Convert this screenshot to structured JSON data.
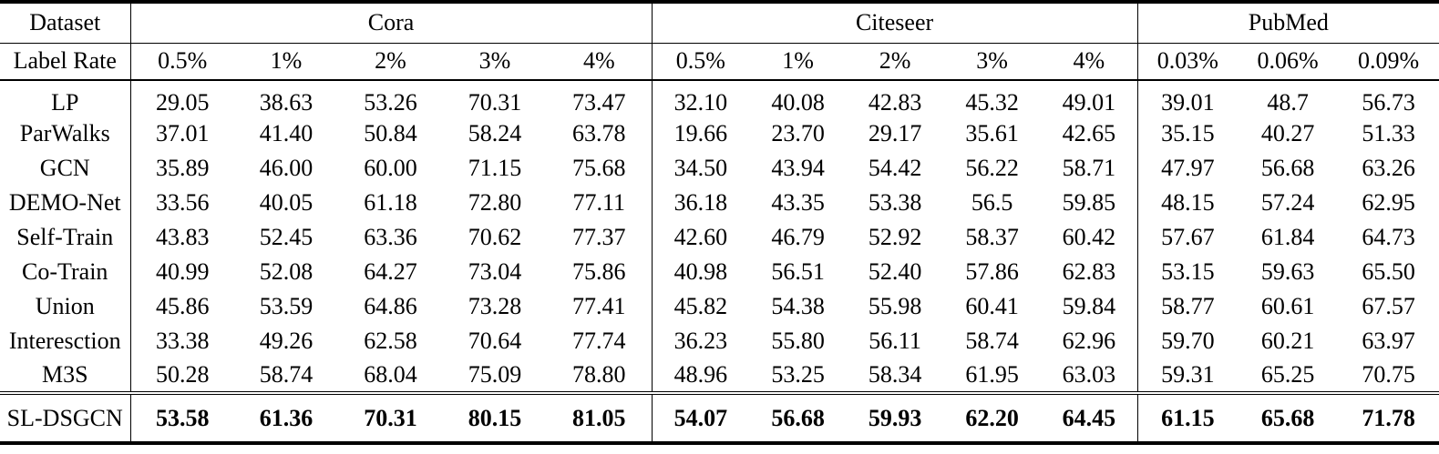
{
  "table": {
    "corner_top": "Dataset",
    "corner_bottom": "Label Rate",
    "groups": [
      {
        "name": "cora",
        "label": "Cora",
        "rates": [
          "0.5%",
          "1%",
          "2%",
          "3%",
          "4%"
        ]
      },
      {
        "name": "citeseer",
        "label": "Citeseer",
        "rates": [
          "0.5%",
          "1%",
          "2%",
          "3%",
          "4%"
        ]
      },
      {
        "name": "pubmed",
        "label": "PubMed",
        "rates": [
          "0.03%",
          "0.06%",
          "0.09%"
        ]
      }
    ],
    "rows": [
      {
        "method": "LP",
        "values": [
          "29.05",
          "38.63",
          "53.26",
          "70.31",
          "73.47",
          "32.10",
          "40.08",
          "42.83",
          "45.32",
          "49.01",
          "39.01",
          "48.7",
          "56.73"
        ]
      },
      {
        "method": "ParWalks",
        "values": [
          "37.01",
          "41.40",
          "50.84",
          "58.24",
          "63.78",
          "19.66",
          "23.70",
          "29.17",
          "35.61",
          "42.65",
          "35.15",
          "40.27",
          "51.33"
        ]
      },
      {
        "method": "GCN",
        "values": [
          "35.89",
          "46.00",
          "60.00",
          "71.15",
          "75.68",
          "34.50",
          "43.94",
          "54.42",
          "56.22",
          "58.71",
          "47.97",
          "56.68",
          "63.26"
        ]
      },
      {
        "method": "DEMO-Net",
        "values": [
          "33.56",
          "40.05",
          "61.18",
          "72.80",
          "77.11",
          "36.18",
          "43.35",
          "53.38",
          "56.5",
          "59.85",
          "48.15",
          "57.24",
          "62.95"
        ]
      },
      {
        "method": "Self-Train",
        "values": [
          "43.83",
          "52.45",
          "63.36",
          "70.62",
          "77.37",
          "42.60",
          "46.79",
          "52.92",
          "58.37",
          "60.42",
          "57.67",
          "61.84",
          "64.73"
        ]
      },
      {
        "method": "Co-Train",
        "values": [
          "40.99",
          "52.08",
          "64.27",
          "73.04",
          "75.86",
          "40.98",
          "56.51",
          "52.40",
          "57.86",
          "62.83",
          "53.15",
          "59.63",
          "65.50"
        ]
      },
      {
        "method": "Union",
        "values": [
          "45.86",
          "53.59",
          "64.86",
          "73.28",
          "77.41",
          "45.82",
          "54.38",
          "55.98",
          "60.41",
          "59.84",
          "58.77",
          "60.61",
          "67.57"
        ]
      },
      {
        "method": "Interesction",
        "values": [
          "33.38",
          "49.26",
          "62.58",
          "70.64",
          "77.74",
          "36.23",
          "55.80",
          "56.11",
          "58.74",
          "62.96",
          "59.70",
          "60.21",
          "63.97"
        ]
      },
      {
        "method": "M3S",
        "values": [
          "50.28",
          "58.74",
          "68.04",
          "75.09",
          "78.80",
          "48.96",
          "53.25",
          "58.34",
          "61.95",
          "63.03",
          "59.31",
          "65.25",
          "70.75"
        ]
      }
    ],
    "final_row": {
      "method": "SL-DSGCN",
      "values": [
        "53.58",
        "61.36",
        "70.31",
        "80.15",
        "81.05",
        "54.07",
        "56.68",
        "59.93",
        "62.20",
        "64.45",
        "61.15",
        "65.68",
        "71.78"
      ]
    }
  }
}
